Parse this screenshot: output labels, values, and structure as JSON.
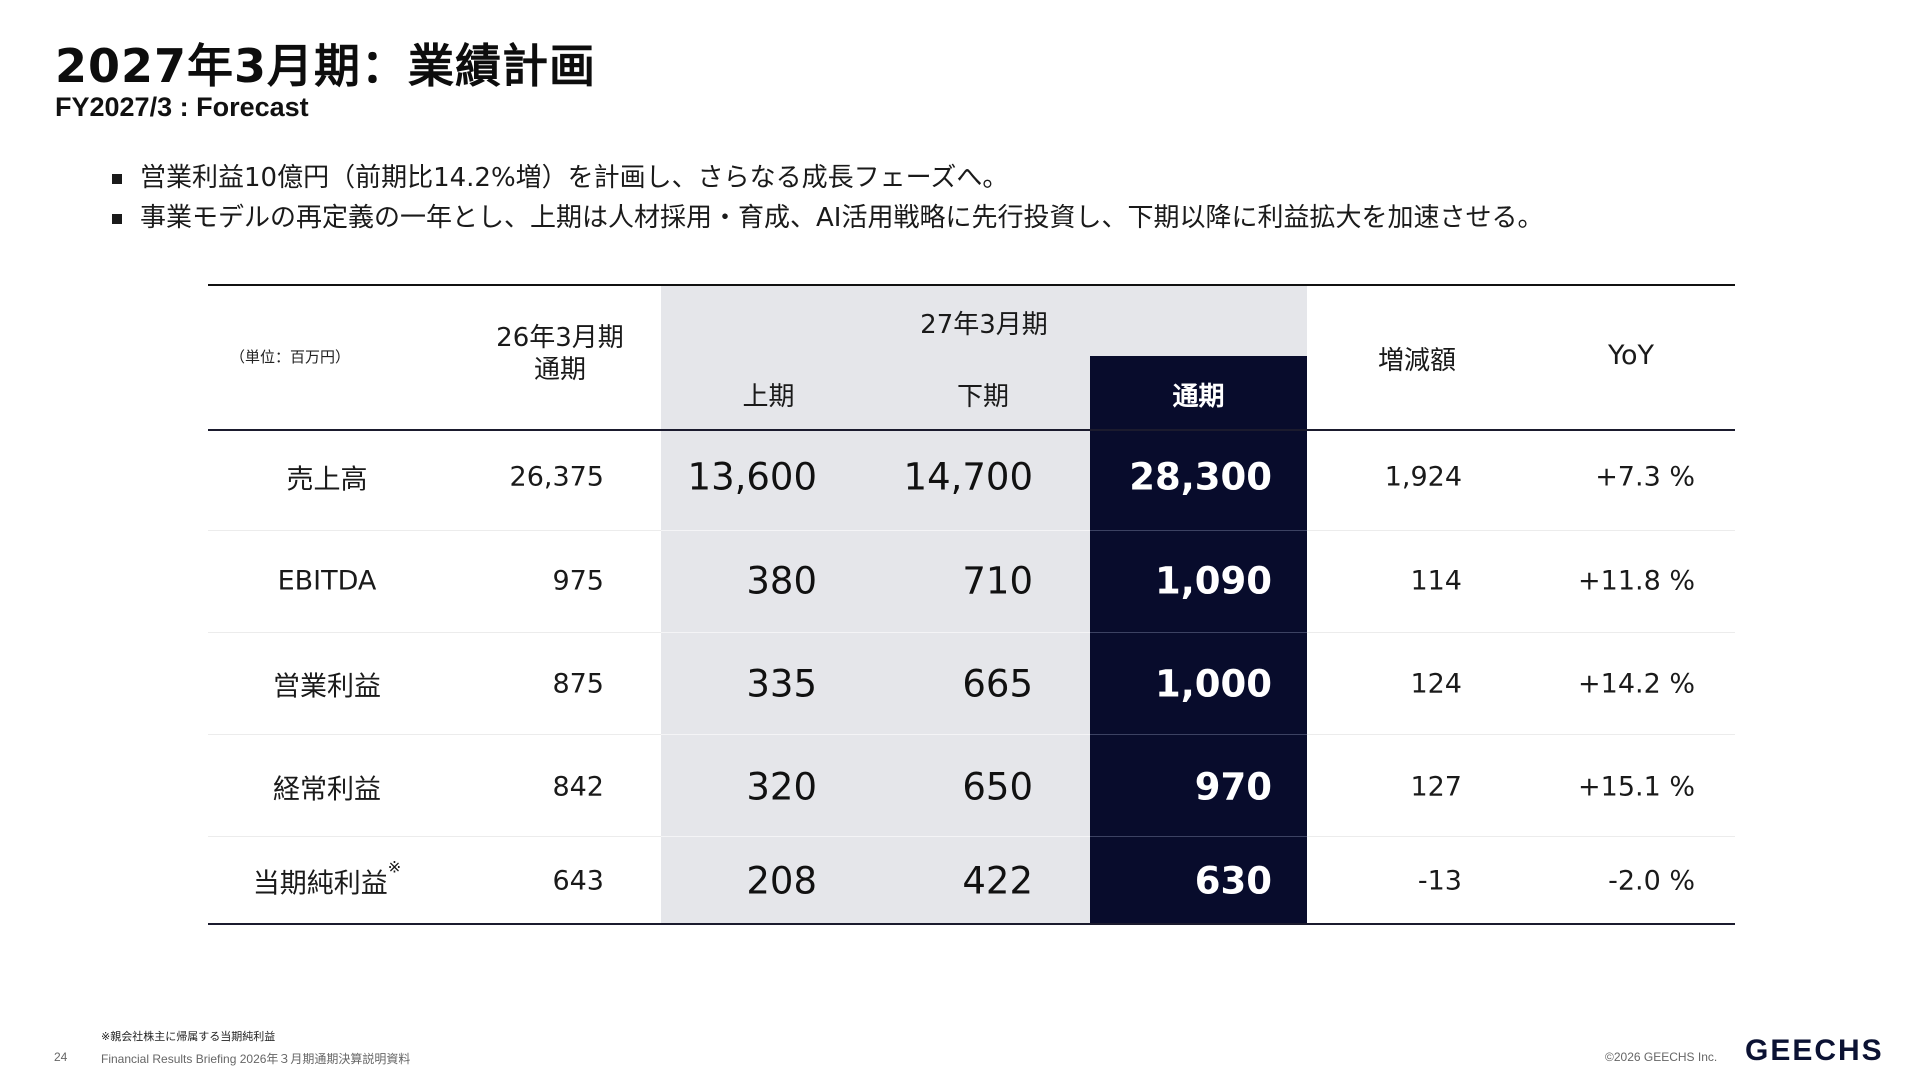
{
  "title": "2027年3月期：業績計画",
  "subtitle": "FY2027/3 : Forecast",
  "bullets": [
    "営業利益10億円（前期比14.2%増）を計画し、さらなる成長フェーズへ。",
    "事業モデルの再定義の一年とし、上期は人材採用・育成、AI活用戦略に先行投資し、下期以降に利益拡大を加速させる。"
  ],
  "table": {
    "unit_label": "（単位：百万円）",
    "header": {
      "prev_line1": "26年3月期",
      "prev_line2": "通期",
      "period": "27年3月期",
      "first_half": "上期",
      "second_half": "下期",
      "full_year": "通期",
      "change": "増減額",
      "yoy": "YoY"
    },
    "rows": [
      {
        "label": "売上高",
        "note": "",
        "prev": "26,375",
        "h1": "13,600",
        "h2": "14,700",
        "full": "28,300",
        "change": "1,924",
        "yoy": "+7.3 %"
      },
      {
        "label": "EBITDA",
        "note": "",
        "prev": "975",
        "h1": "380",
        "h2": "710",
        "full": "1,090",
        "change": "114",
        "yoy": "+11.8 %"
      },
      {
        "label": "営業利益",
        "note": "",
        "prev": "875",
        "h1": "335",
        "h2": "665",
        "full": "1,000",
        "change": "124",
        "yoy": "+14.2 %"
      },
      {
        "label": "経常利益",
        "note": "",
        "prev": "842",
        "h1": "320",
        "h2": "650",
        "full": "970",
        "change": "127",
        "yoy": "+15.1 %"
      },
      {
        "label": "当期純利益",
        "note": "※",
        "prev": "643",
        "h1": "208",
        "h2": "422",
        "full": "630",
        "change": "-13",
        "yoy": "-2.0 %"
      }
    ]
  },
  "footnote": "※親会社株主に帰属する当期純利益",
  "page_number": "24",
  "footer_text": "Financial Results Briefing 2026年３月期通期決算説明資料",
  "copyright": "©2026 GEECHS Inc.",
  "logo_text": "GEECHS",
  "colors": {
    "accent_dark": "#080c2c",
    "shade": "#e5e6ea"
  }
}
